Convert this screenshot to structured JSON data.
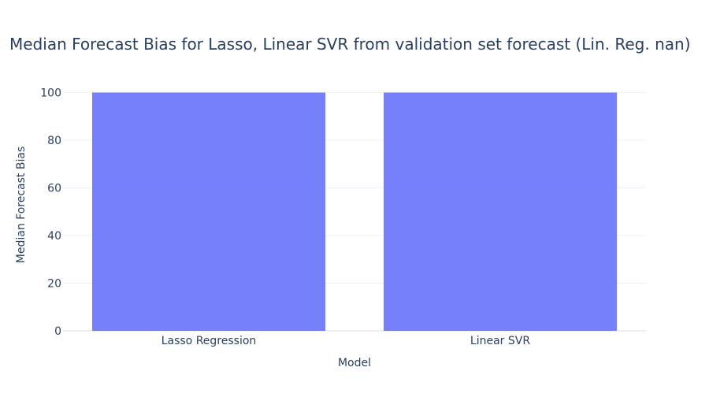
{
  "chart_data": {
    "type": "bar",
    "title": "Median Forecast Bias for Lasso, Linear SVR from validation set forecast (Lin. Reg. nan)",
    "xlabel": "Model",
    "ylabel": "Median Forecast Bias",
    "categories": [
      "Lasso Regression",
      "Linear SVR"
    ],
    "values": [
      100,
      100
    ],
    "ylim": [
      0,
      100.5
    ],
    "yticks": [
      0,
      20,
      40,
      60,
      80,
      100
    ],
    "ytick_labels": [
      "0",
      "20",
      "40",
      "60",
      "80",
      "100"
    ],
    "grid": true,
    "bar_color": "#636efa",
    "bar_opacity": 0.88
  }
}
